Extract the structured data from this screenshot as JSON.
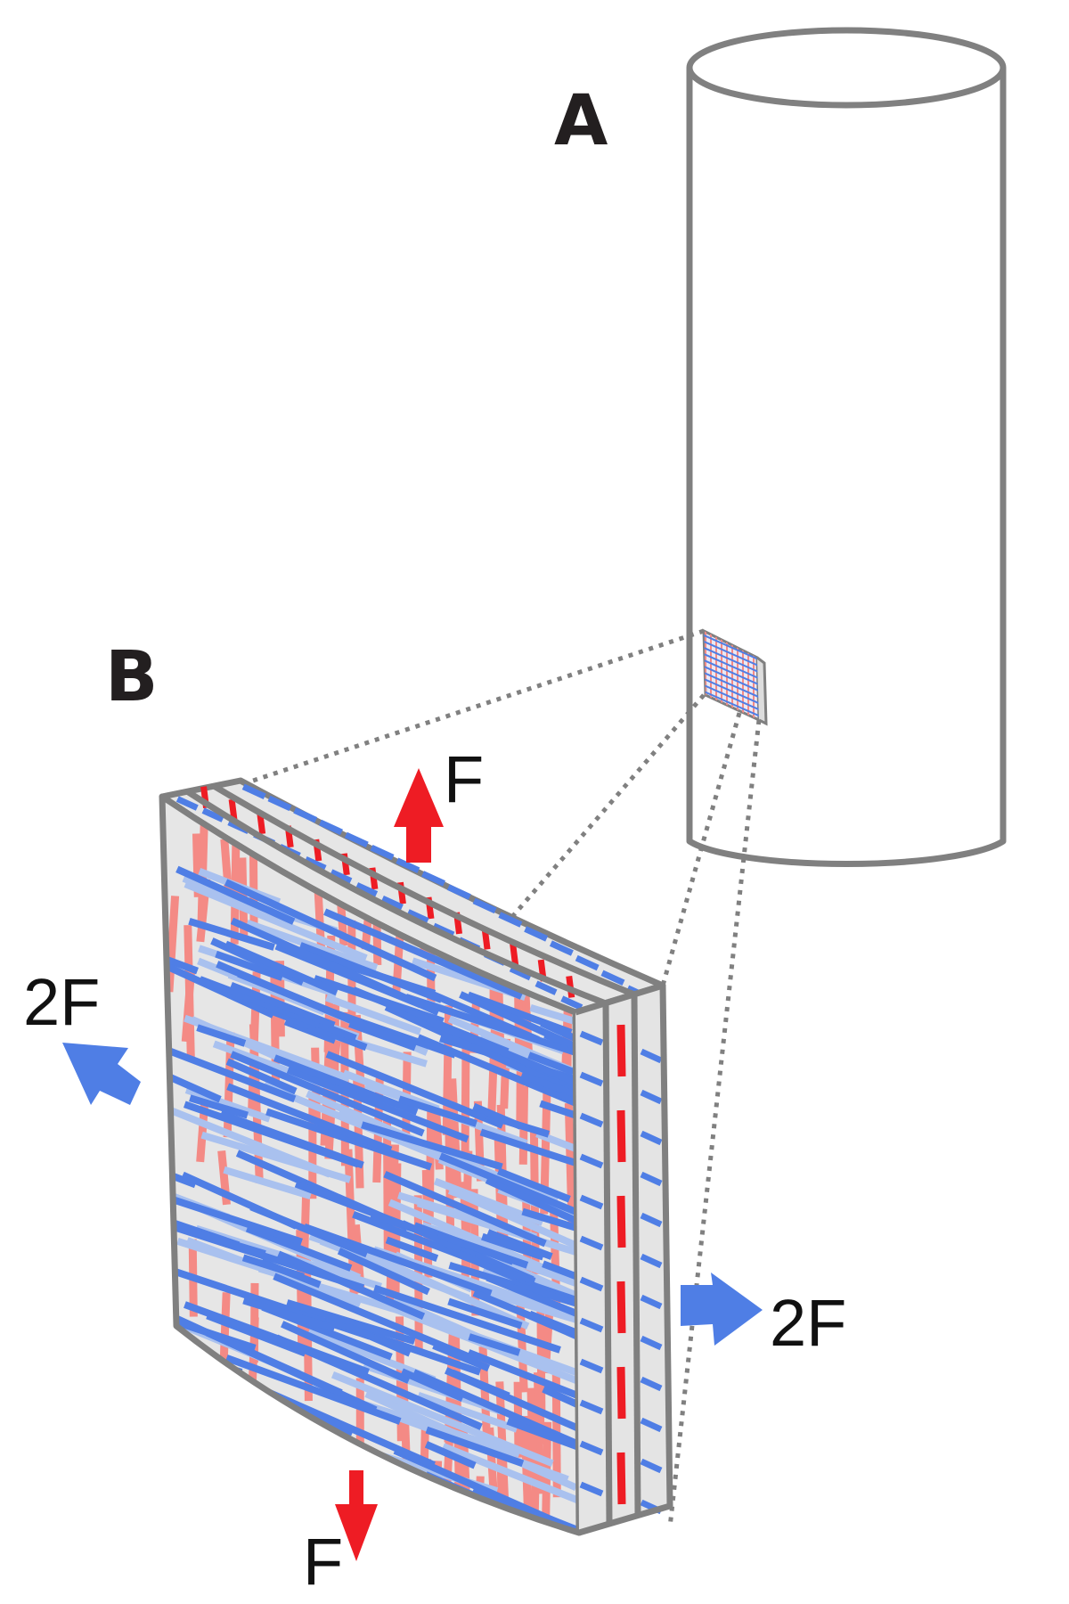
{
  "figure": {
    "panel_a_label": "A",
    "panel_b_label": "B",
    "force_top_label": "F",
    "force_bottom_label": "F",
    "force_left_label": "2F",
    "force_right_label": "2F"
  },
  "colors": {
    "outline": "#808080",
    "panel_fill": "#e6e6e6",
    "fiber_longitudinal": "#f48a85",
    "fiber_longitudinal_edge": "#ee1c24",
    "fiber_circumferential": "#4f7ee5",
    "fiber_circumferential_faint": "#a9c1ef",
    "arrow_axial": "#ee1c24",
    "arrow_hoop": "#4f7ee5"
  },
  "forces": {
    "axial_magnitude": 1,
    "hoop_magnitude": 2
  }
}
